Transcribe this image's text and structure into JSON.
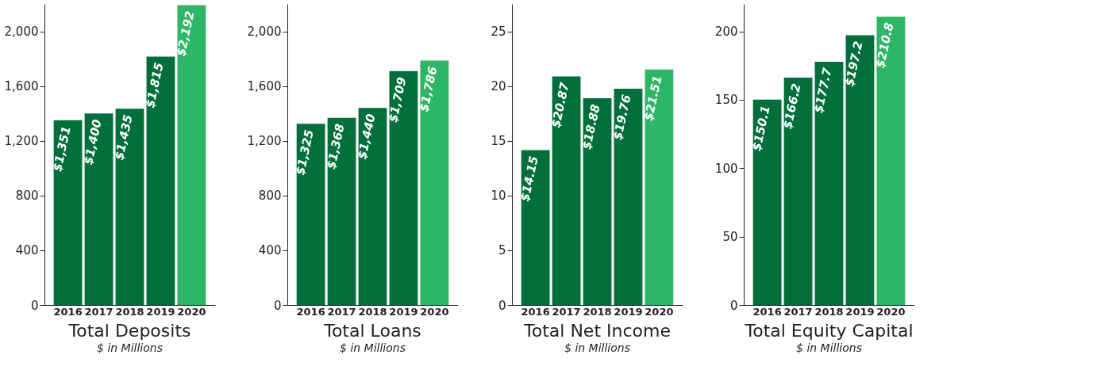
{
  "chart_data": [
    {
      "type": "bar",
      "title": "Total Deposits",
      "subtitle": "$ in Millions",
      "categories": [
        "2016",
        "2017",
        "2018",
        "2019",
        "2020"
      ],
      "values": [
        1351,
        1400,
        1435,
        1815,
        2192
      ],
      "colors": [
        "#006f3b",
        "#006f3b",
        "#006f3b",
        "#006f3b",
        "#2cb665"
      ],
      "value_labels": [
        "$1,351",
        "$1,400",
        "$1,435",
        "$1,815",
        "$2,192"
      ],
      "ylim": [
        0,
        2200
      ],
      "yticks": [
        0,
        {
          "value": 400,
          "label": "400"
        },
        {
          "value": 800,
          "label": "800"
        },
        {
          "value": 1200,
          "label": "1,200"
        },
        {
          "value": 1600,
          "label": "1,600"
        },
        {
          "value": 2000,
          "label": "2,000"
        }
      ],
      "grid": false
    },
    {
      "type": "bar",
      "title": "Total Loans",
      "subtitle": "$ in Millions",
      "categories": [
        "2016",
        "2017",
        "2018",
        "2019",
        "2020"
      ],
      "values": [
        1325,
        1368,
        1440,
        1709,
        1786
      ],
      "colors": [
        "#006f3b",
        "#006f3b",
        "#006f3b",
        "#006f3b",
        "#2cb665"
      ],
      "value_labels": [
        "$1,325",
        "$1,368",
        "$1,440",
        "$1,709",
        "$1,786"
      ],
      "ylim": [
        0,
        2200
      ],
      "yticks": [
        0,
        {
          "value": 400,
          "label": "400"
        },
        {
          "value": 800,
          "label": "800"
        },
        {
          "value": 1200,
          "label": "1,200"
        },
        {
          "value": 1600,
          "label": "1,600"
        },
        {
          "value": 2000,
          "label": "2,000"
        }
      ],
      "grid": false
    },
    {
      "type": "bar",
      "title": "Total Net Income",
      "subtitle": "$ in Millions",
      "categories": [
        "2016",
        "2017",
        "2018",
        "2019",
        "2020"
      ],
      "values": [
        14.15,
        20.87,
        18.88,
        19.76,
        21.51
      ],
      "colors": [
        "#006f3b",
        "#006f3b",
        "#006f3b",
        "#006f3b",
        "#2cb665"
      ],
      "value_labels": [
        "$14.15",
        "$20.87",
        "$18.88",
        "$19.76",
        "$21.51"
      ],
      "ylim": [
        0,
        27.5
      ],
      "yticks": [
        0,
        5,
        10,
        15,
        20,
        25
      ],
      "grid": false
    },
    {
      "type": "bar",
      "title": "Total Equity Capital",
      "subtitle": "$ in Millions",
      "categories": [
        "2016",
        "2017",
        "2018",
        "2019",
        "2020"
      ],
      "values": [
        150.1,
        166.2,
        177.7,
        197.2,
        210.8
      ],
      "colors": [
        "#006f3b",
        "#006f3b",
        "#006f3b",
        "#006f3b",
        "#2cb665"
      ],
      "value_labels": [
        "$150.1",
        "$166.2",
        "$177.7",
        "$197.2",
        "$210.8"
      ],
      "ylim": [
        0,
        220
      ],
      "yticks": [
        0,
        50,
        100,
        150,
        200
      ],
      "grid": false
    }
  ]
}
